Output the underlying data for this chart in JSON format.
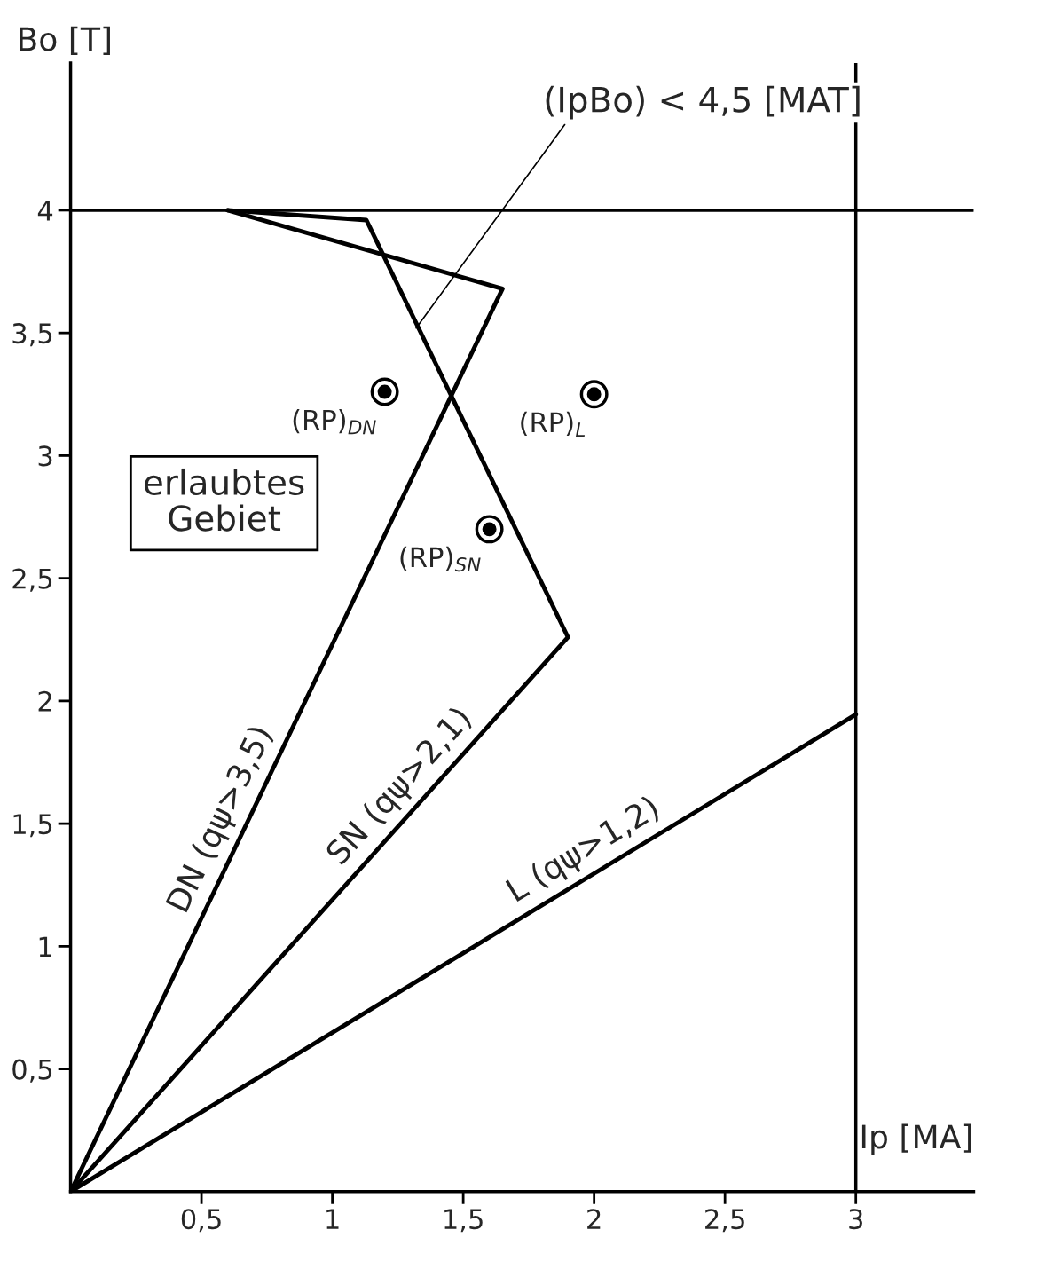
{
  "chart_data": {
    "type": "line",
    "xlabel": "Ip [MA]",
    "ylabel": "Bo [T]",
    "xlim": [
      0,
      3.45
    ],
    "ylim": [
      0,
      4.6
    ],
    "xticks": [
      {
        "value": 0.5,
        "label": "0,5"
      },
      1,
      {
        "value": 1.5,
        "label": "1,5"
      },
      2,
      {
        "value": 2.5,
        "label": "2,5"
      },
      3
    ],
    "yticks": [
      {
        "value": 0.5,
        "label": "0,5"
      },
      1,
      {
        "value": 1.5,
        "label": "1,5"
      },
      2,
      {
        "value": 2.5,
        "label": "2,5"
      },
      3,
      {
        "value": 3.5,
        "label": "3,5"
      },
      4
    ],
    "grid": false,
    "ref_lines": [
      {
        "axis": "x",
        "value": 3,
        "color": "#000000"
      },
      {
        "axis": "y",
        "value": 4,
        "color": "#000000"
      }
    ],
    "series": [
      {
        "name": "DN (qψ>3,5)",
        "color": "#000000",
        "x": [
          0,
          1.65,
          0.6
        ],
        "values": [
          0,
          3.68,
          4.0
        ]
      },
      {
        "name": "SN (qψ>2,1)",
        "color": "#000000",
        "x": [
          0,
          1.9,
          1.13,
          0.6
        ],
        "values": [
          0,
          2.26,
          3.96,
          4.0
        ]
      },
      {
        "name": "L (qψ>1,2)",
        "color": "#000000",
        "x": [
          0,
          3
        ],
        "values": [
          0,
          1.945
        ]
      },
      {
        "type": "scatter",
        "color": "#000000",
        "marker": "circle",
        "x": [
          1.2,
          1.6,
          2.0
        ],
        "values": [
          3.26,
          2.7,
          3.25
        ],
        "value_labels": [
          "(RP)$_{DN}$",
          "(RP)$_{SN}$",
          "(RP)$_{L}$"
        ]
      }
    ],
    "annotations": [
      {
        "text": "(IpBo) < 4,5 [MAT]",
        "x": 1.32,
        "y": 3.52
      },
      "erlaubtes\nGebiet"
    ]
  }
}
